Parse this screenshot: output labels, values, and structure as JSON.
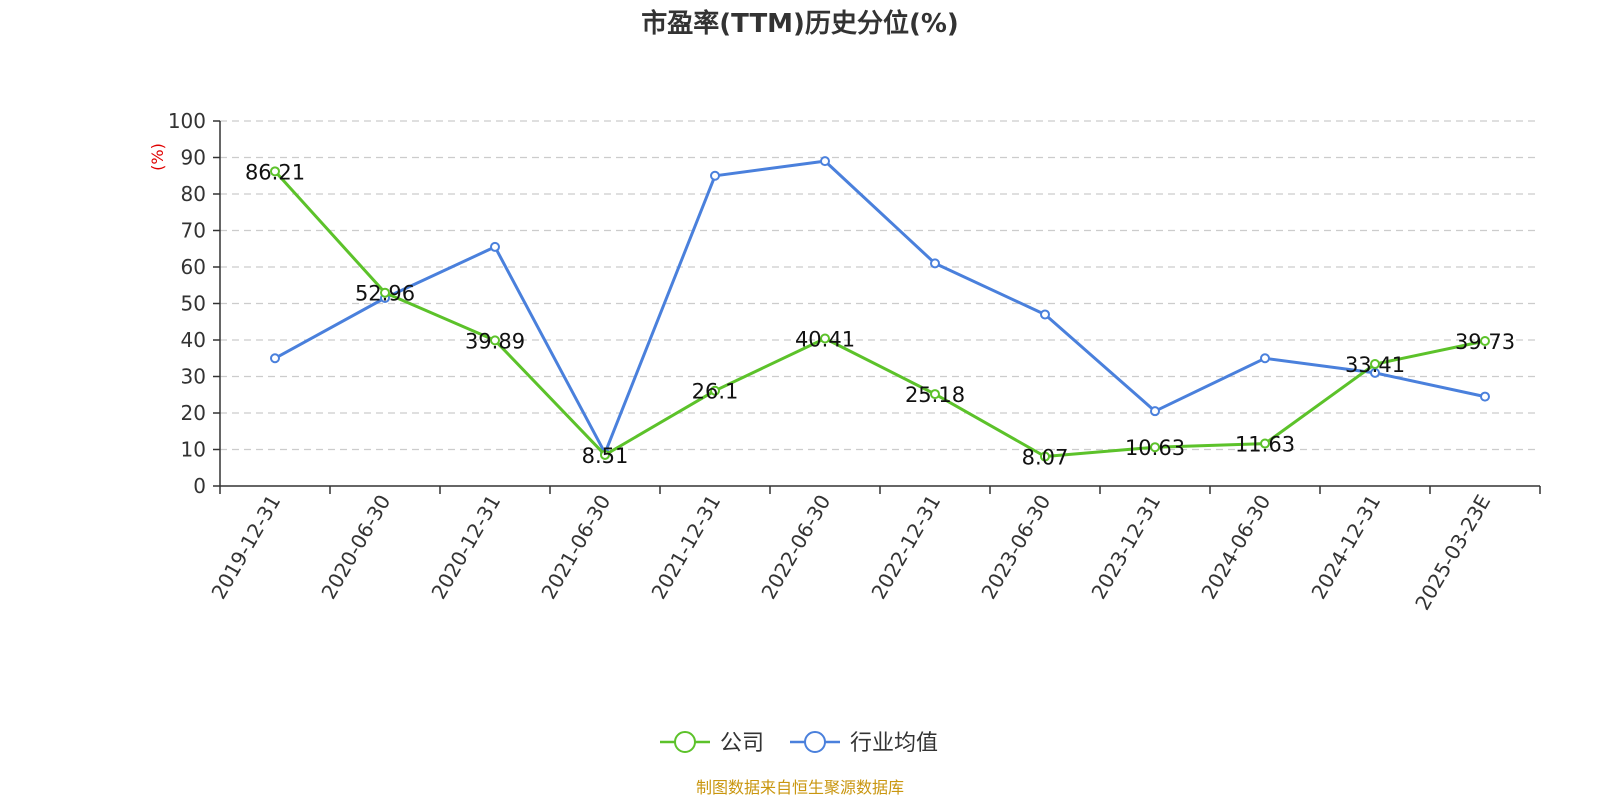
{
  "chart_data": {
    "type": "line",
    "title": "市盈率(TTM)历史分位(%)",
    "ylabel": "(%)",
    "ylim": [
      0,
      100
    ],
    "yticks": [
      0,
      10,
      20,
      30,
      40,
      50,
      60,
      70,
      80,
      90,
      100
    ],
    "grid": true,
    "legend_position": "bottom",
    "categories": [
      "2019-12-31",
      "2020-06-30",
      "2020-12-31",
      "2021-06-30",
      "2021-12-31",
      "2022-06-30",
      "2022-12-31",
      "2023-06-30",
      "2023-12-31",
      "2024-06-30",
      "2024-12-31",
      "2025-03-23E"
    ],
    "series": [
      {
        "name": "公司",
        "color": "#5cc22a",
        "values": [
          86.21,
          52.96,
          39.89,
          8.51,
          26.1,
          40.41,
          25.18,
          8.07,
          10.63,
          11.63,
          33.41,
          39.73
        ],
        "labels": [
          "86.21",
          "52.96",
          "39.89",
          "8.51",
          "26.1",
          "40.41",
          "25.18",
          "8.07",
          "10.63",
          "11.63",
          "33.41",
          "39.73"
        ]
      },
      {
        "name": "行业均值",
        "color": "#4a80dc",
        "values": [
          35,
          51.5,
          65.5,
          9,
          85,
          89,
          61,
          47,
          20.5,
          35,
          31,
          24.5
        ]
      }
    ],
    "source": "制图数据来自恒生聚源数据库"
  }
}
